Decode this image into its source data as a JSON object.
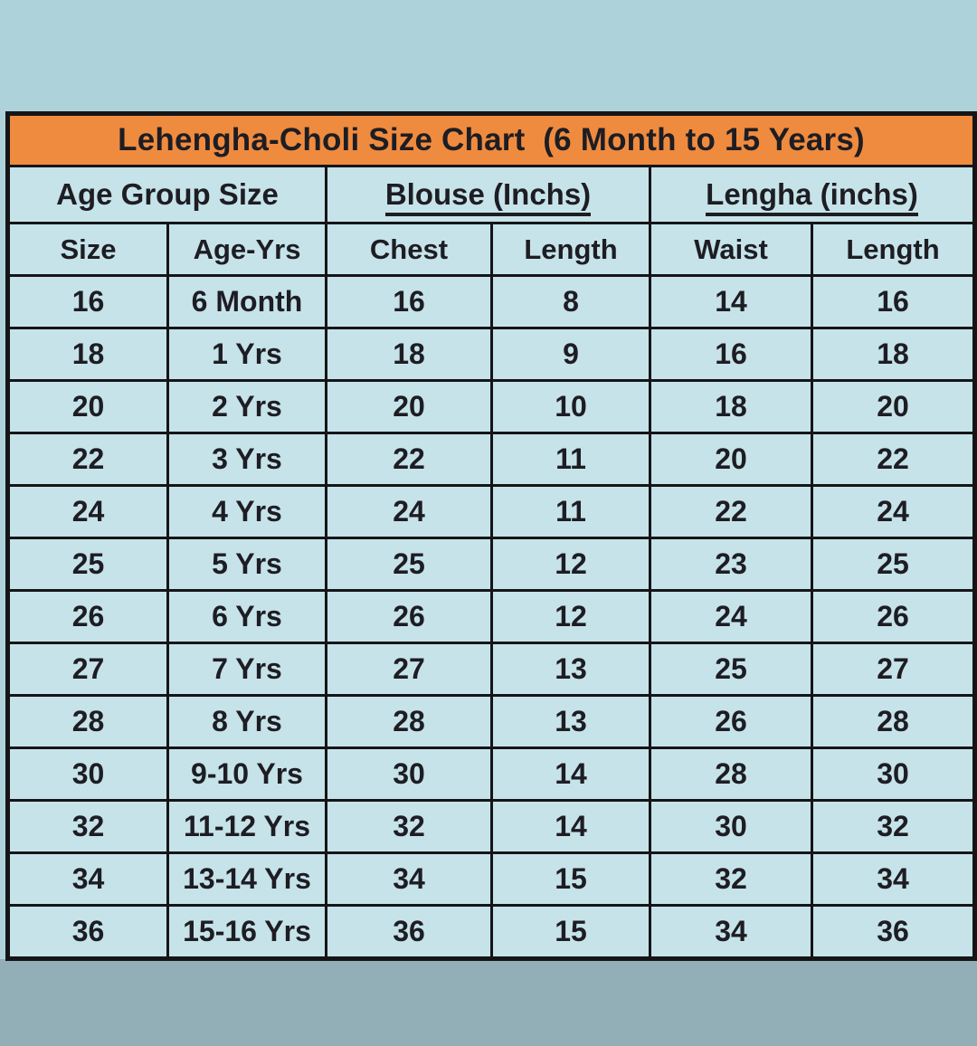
{
  "page": {
    "colors": {
      "background_top": "#aed2d9",
      "background_bottom": "#92afb7",
      "title_bar": "#ef8b3f",
      "cell_background": "#c6e3e9",
      "border": "#151517",
      "text": "#1d1d23"
    }
  },
  "chart_data": {
    "type": "table",
    "title": "Lehengha-Choli Size Chart  (6 Month to 15 Years)",
    "column_groups": [
      {
        "label": "Age Group Size",
        "underlined": false
      },
      {
        "label": "Blouse (Inchs)",
        "underlined": true
      },
      {
        "label": "Lengha (inchs)",
        "underlined": true
      }
    ],
    "columns": [
      "Size",
      "Age-Yrs",
      "Chest",
      "Length",
      "Waist",
      "Length"
    ],
    "rows": [
      [
        "16",
        "6 Month",
        "16",
        "8",
        "14",
        "16"
      ],
      [
        "18",
        "1 Yrs",
        "18",
        "9",
        "16",
        "18"
      ],
      [
        "20",
        "2 Yrs",
        "20",
        "10",
        "18",
        "20"
      ],
      [
        "22",
        "3 Yrs",
        "22",
        "11",
        "20",
        "22"
      ],
      [
        "24",
        "4 Yrs",
        "24",
        "11",
        "22",
        "24"
      ],
      [
        "25",
        "5 Yrs",
        "25",
        "12",
        "23",
        "25"
      ],
      [
        "26",
        "6 Yrs",
        "26",
        "12",
        "24",
        "26"
      ],
      [
        "27",
        "7 Yrs",
        "27",
        "13",
        "25",
        "27"
      ],
      [
        "28",
        "8 Yrs",
        "28",
        "13",
        "26",
        "28"
      ],
      [
        "30",
        "9-10 Yrs",
        "30",
        "14",
        "28",
        "30"
      ],
      [
        "32",
        "11-12 Yrs",
        "32",
        "14",
        "30",
        "32"
      ],
      [
        "34",
        "13-14 Yrs",
        "34",
        "15",
        "32",
        "34"
      ],
      [
        "36",
        "15-16 Yrs",
        "36",
        "15",
        "34",
        "36"
      ]
    ]
  }
}
